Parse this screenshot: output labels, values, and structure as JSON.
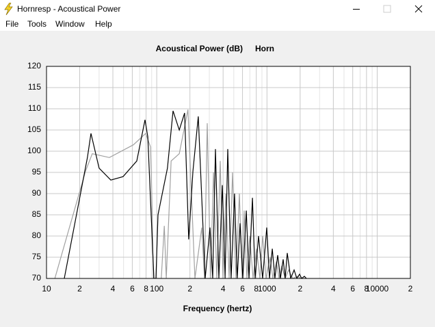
{
  "window": {
    "title": "Hornresp - Acoustical Power",
    "menu": [
      "File",
      "Tools",
      "Window",
      "Help"
    ]
  },
  "chart_data": {
    "type": "line",
    "title": "Acoustical Power (dB)",
    "subtitle": "Horn",
    "xlabel": "Frequency (hertz)",
    "xscale": "log",
    "grid": true,
    "xlim": [
      10,
      20000
    ],
    "xticks": [
      10,
      {
        "value": 20,
        "label": "2"
      },
      {
        "value": 40,
        "label": "4"
      },
      {
        "value": 60,
        "label": "6"
      },
      {
        "value": 80,
        "label": "8"
      },
      100,
      {
        "value": 200,
        "label": "2"
      },
      {
        "value": 400,
        "label": "4"
      },
      {
        "value": 600,
        "label": "6"
      },
      {
        "value": 800,
        "label": "8"
      },
      1000,
      {
        "value": 2000,
        "label": "2"
      },
      {
        "value": 4000,
        "label": "4"
      },
      {
        "value": 6000,
        "label": "6"
      },
      {
        "value": 8000,
        "label": "8"
      },
      10000,
      {
        "value": 20000,
        "label": "2"
      }
    ],
    "xminorticks": [
      30,
      50,
      70,
      90,
      300,
      500,
      700,
      900,
      3000,
      5000,
      7000,
      9000
    ],
    "ylim": [
      70,
      120
    ],
    "yticks": [
      70,
      75,
      80,
      85,
      90,
      95,
      100,
      105,
      110,
      115,
      120
    ],
    "series": [
      {
        "color": "#a0a0a0",
        "x": [
          11.9,
          22.6,
          26,
          37.2,
          61.4,
          79.4,
          87.9,
          90.6,
          93,
          110,
          117,
          122,
          135,
          160,
          192,
          222,
          256,
          271,
          287,
          308,
          327,
          351,
          377,
          399,
          423,
          454,
          487,
          523,
          562,
          595,
          621,
          658,
          697,
          748,
          803,
          863,
          914,
          981,
          1069,
          1132,
          1216,
          1288,
          1362,
          1462,
          1573,
          1714,
          1893,
          2032
        ],
        "values": [
          70,
          95.3,
          99.4,
          98.5,
          101.5,
          104.2,
          101,
          87.3,
          70,
          70,
          82.4,
          70,
          97.7,
          99.4,
          109.8,
          70,
          82,
          70,
          106.6,
          70,
          95,
          70,
          97.7,
          70,
          90,
          70,
          95,
          70,
          90,
          70,
          86,
          70,
          80,
          70,
          77,
          70,
          80,
          70,
          75,
          70,
          74,
          70,
          73,
          70,
          72,
          70,
          70.5,
          70
        ]
      },
      {
        "color": "#000000",
        "x": [
          14.5,
          23.5,
          25.3,
          30,
          38.3,
          49.5,
          65.9,
          78.3,
          83,
          94.2,
          98.4,
          102.6,
          125,
          140.6,
          160,
          179,
          195,
          213,
          238,
          275,
          304,
          322,
          341,
          366,
          394,
          417,
          441,
          473,
          508,
          538,
          570,
          604,
          649,
          687,
          738,
          781,
          839,
          914,
          996,
          1054,
          1117,
          1180,
          1251,
          1324,
          1403,
          1462,
          1528,
          1641,
          1763,
          1866,
          1977,
          2062,
          2185,
          2280
        ],
        "values": [
          70,
          98.5,
          104.2,
          96,
          93.2,
          94,
          97.7,
          107.4,
          103.4,
          70,
          70,
          85,
          96,
          109.5,
          105,
          109,
          79.2,
          95.3,
          108.2,
          70,
          82,
          70,
          100.5,
          70,
          92,
          70,
          100.5,
          70,
          90,
          70,
          83,
          70,
          86,
          70,
          89,
          70,
          80,
          70,
          82,
          70,
          77,
          70,
          75.5,
          70,
          74.5,
          70,
          76,
          70,
          72,
          70,
          71,
          70,
          70.5,
          70
        ]
      }
    ]
  }
}
